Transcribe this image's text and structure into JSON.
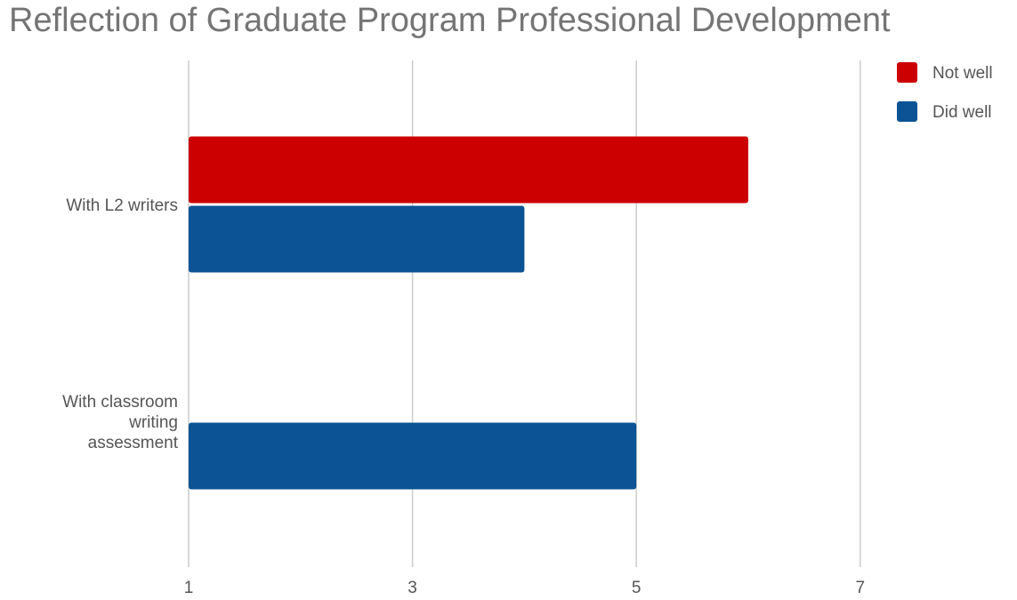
{
  "chart_data": {
    "type": "bar",
    "orientation": "horizontal",
    "title": "Reflection of Graduate Program Professional Development",
    "xlabel": "",
    "ylabel": "",
    "categories": [
      "With L2 writers",
      "With classroom writing assessment"
    ],
    "category_lines": [
      [
        "With L2 writers"
      ],
      [
        "With classroom",
        "writing",
        "assessment"
      ]
    ],
    "series": [
      {
        "name": "Not well",
        "color": "#cc0000",
        "values": [
          6,
          null
        ]
      },
      {
        "name": "Did well",
        "color": "#0b5394",
        "values": [
          4,
          5
        ]
      }
    ],
    "xlim": [
      1,
      8
    ],
    "xticks": [
      "1",
      "3",
      "5",
      "7"
    ],
    "grid": true,
    "legend_position": "top-right"
  }
}
